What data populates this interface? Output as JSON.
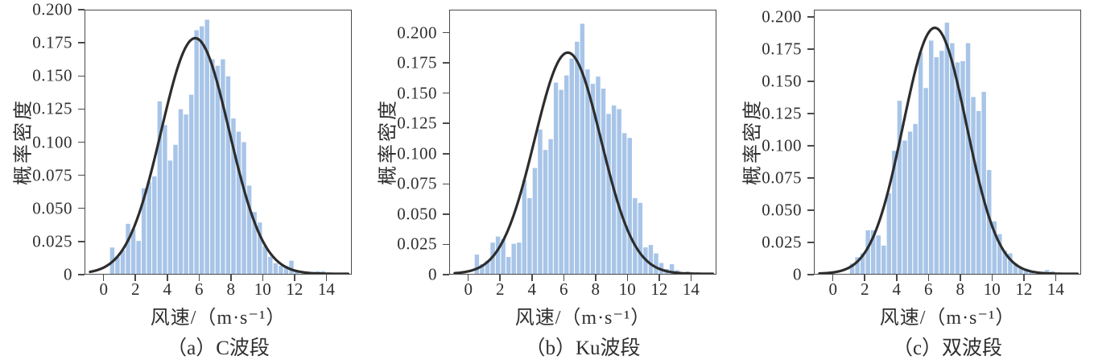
{
  "figure": {
    "background": "#ffffff",
    "description_labels": {
      "probability_density": "概率密度",
      "wind_speed_unit": "风速/（m·s⁻¹）"
    }
  },
  "chart_data": [
    {
      "type": "histogram",
      "caption": "（a）C波段",
      "xlabel": "风速/（m·s⁻¹）",
      "ylabel": "概率密度",
      "bar_color": "#a8c5e8",
      "curve_color": "#2d2d2d",
      "axis_color": "#4a4a4a",
      "bin_start": 0.3333,
      "bin_width": 0.3333,
      "values": [
        0.02,
        0.013,
        0.018,
        0.038,
        0.034,
        0.025,
        0.065,
        0.07,
        0.074,
        0.131,
        0.113,
        0.086,
        0.098,
        0.125,
        0.121,
        0.136,
        0.185,
        0.188,
        0.193,
        0.163,
        0.158,
        0.163,
        0.15,
        0.118,
        0.108,
        0.1,
        0.067,
        0.047,
        0.039,
        0.021,
        0.013,
        0.008,
        0.006,
        0.006,
        0.01,
        0.003,
        0,
        0,
        0,
        0.002,
        0.002
      ],
      "curve": {
        "type": "gaussian",
        "peak": 0.179,
        "mu": 5.75,
        "sigma": 2.15
      },
      "xlim": [
        -1.2,
        15.6
      ],
      "ylim": [
        0,
        0.2
      ],
      "xticks": [
        0,
        2,
        4,
        6,
        8,
        10,
        12,
        14
      ],
      "yticks": [
        0,
        0.025,
        0.05,
        0.075,
        0.1,
        0.125,
        0.15,
        0.175,
        0.2
      ],
      "ytick_labels": [
        "0",
        "0.025",
        "0.050",
        "0.075",
        "0.100",
        "0.125",
        "0.150",
        "0.175",
        "0.200"
      ],
      "grid": false,
      "legend": "none"
    },
    {
      "type": "histogram",
      "caption": "（b）Ku波段",
      "xlabel": "风速/（m·s⁻¹）",
      "ylabel": "概率密度",
      "bar_color": "#a8c5e8",
      "curve_color": "#2d2d2d",
      "axis_color": "#4a4a4a",
      "bin_start": 0.3333,
      "bin_width": 0.3333,
      "values": [
        0.016,
        0.008,
        0.011,
        0.026,
        0.031,
        0.029,
        0.014,
        0.025,
        0.026,
        0.078,
        0.063,
        0.088,
        0.12,
        0.103,
        0.112,
        0.159,
        0.153,
        0.165,
        0.179,
        0.193,
        0.208,
        0.17,
        0.158,
        0.164,
        0.154,
        0.133,
        0.14,
        0.137,
        0.117,
        0.113,
        0.063,
        0.059,
        0.022,
        0.024,
        0.017,
        0.009,
        0.004,
        0.008,
        0.003,
        0,
        0.002
      ],
      "curve": {
        "type": "gaussian",
        "peak": 0.184,
        "mu": 6.25,
        "sigma": 2.1
      },
      "xlim": [
        -1.2,
        15.6
      ],
      "ylim": [
        0,
        0.219
      ],
      "xticks": [
        0,
        2,
        4,
        6,
        8,
        10,
        12,
        14
      ],
      "yticks": [
        0,
        0.025,
        0.05,
        0.075,
        0.1,
        0.125,
        0.15,
        0.175,
        0.2
      ],
      "ytick_labels": [
        "0",
        "0.025",
        "0.050",
        "0.075",
        "0.100",
        "0.125",
        "0.150",
        "0.175",
        "0.200"
      ],
      "grid": false,
      "legend": "none"
    },
    {
      "type": "histogram",
      "caption": "（c）双波段",
      "xlabel": "风速/（m·s⁻¹）",
      "ylabel": "概率密度",
      "bar_color": "#a8c5e8",
      "curve_color": "#2d2d2d",
      "axis_color": "#4a4a4a",
      "bin_start": 0.3333,
      "bin_width": 0.3333,
      "values": [
        0,
        0,
        0.008,
        0.013,
        0.016,
        0.034,
        0.034,
        0.03,
        0.022,
        0.063,
        0.096,
        0.135,
        0.104,
        0.111,
        0.117,
        0.173,
        0.145,
        0.182,
        0.169,
        0.174,
        0.196,
        0.18,
        0.165,
        0.166,
        0.18,
        0.138,
        0.127,
        0.142,
        0.081,
        0.041,
        0.031,
        0.018,
        0.016,
        0.008,
        0.005,
        0.004,
        0.002,
        0,
        0,
        0.003,
        0.002
      ],
      "curve": {
        "type": "gaussian",
        "peak": 0.192,
        "mu": 6.4,
        "sigma": 2.0
      },
      "xlim": [
        -1.2,
        15.6
      ],
      "ylim": [
        0,
        0.2055
      ],
      "xticks": [
        0,
        2,
        4,
        6,
        8,
        10,
        12,
        14
      ],
      "yticks": [
        0,
        0.025,
        0.05,
        0.075,
        0.1,
        0.125,
        0.15,
        0.175,
        0.2
      ],
      "ytick_labels": [
        "0",
        "0.025",
        "0.050",
        "0.075",
        "0.100",
        "0.125",
        "0.150",
        "0.175",
        "0.200"
      ],
      "grid": false,
      "legend": "none"
    }
  ]
}
